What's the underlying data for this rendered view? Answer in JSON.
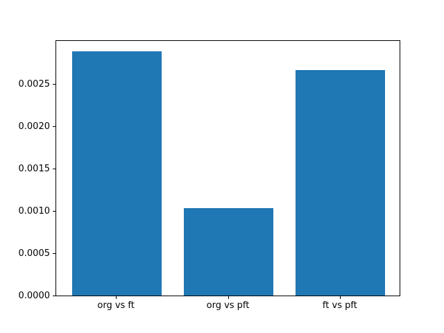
{
  "chart_data": {
    "type": "bar",
    "categories": [
      "org vs ft",
      "org vs pft",
      "ft vs pft"
    ],
    "values": [
      0.00288,
      0.00103,
      0.00266
    ],
    "x_positions": [
      0,
      1,
      2
    ],
    "title": "",
    "xlabel": "",
    "ylabel": "",
    "xlim": [
      -0.54,
      2.54
    ],
    "ylim": [
      0,
      0.00302
    ],
    "yticks": [
      0.0,
      0.0005,
      0.001,
      0.0015,
      0.002,
      0.0025
    ],
    "ytick_labels": [
      "0.0000",
      "0.0005",
      "0.0010",
      "0.0015",
      "0.0020",
      "0.0025"
    ],
    "bar_width_fraction": 0.8,
    "bar_color": "#1f77b4",
    "spine_color": "#000000",
    "tick_color": "#000000",
    "text_color": "#000000",
    "background_color": "#ffffff",
    "grid": false,
    "legend_position": "none"
  }
}
